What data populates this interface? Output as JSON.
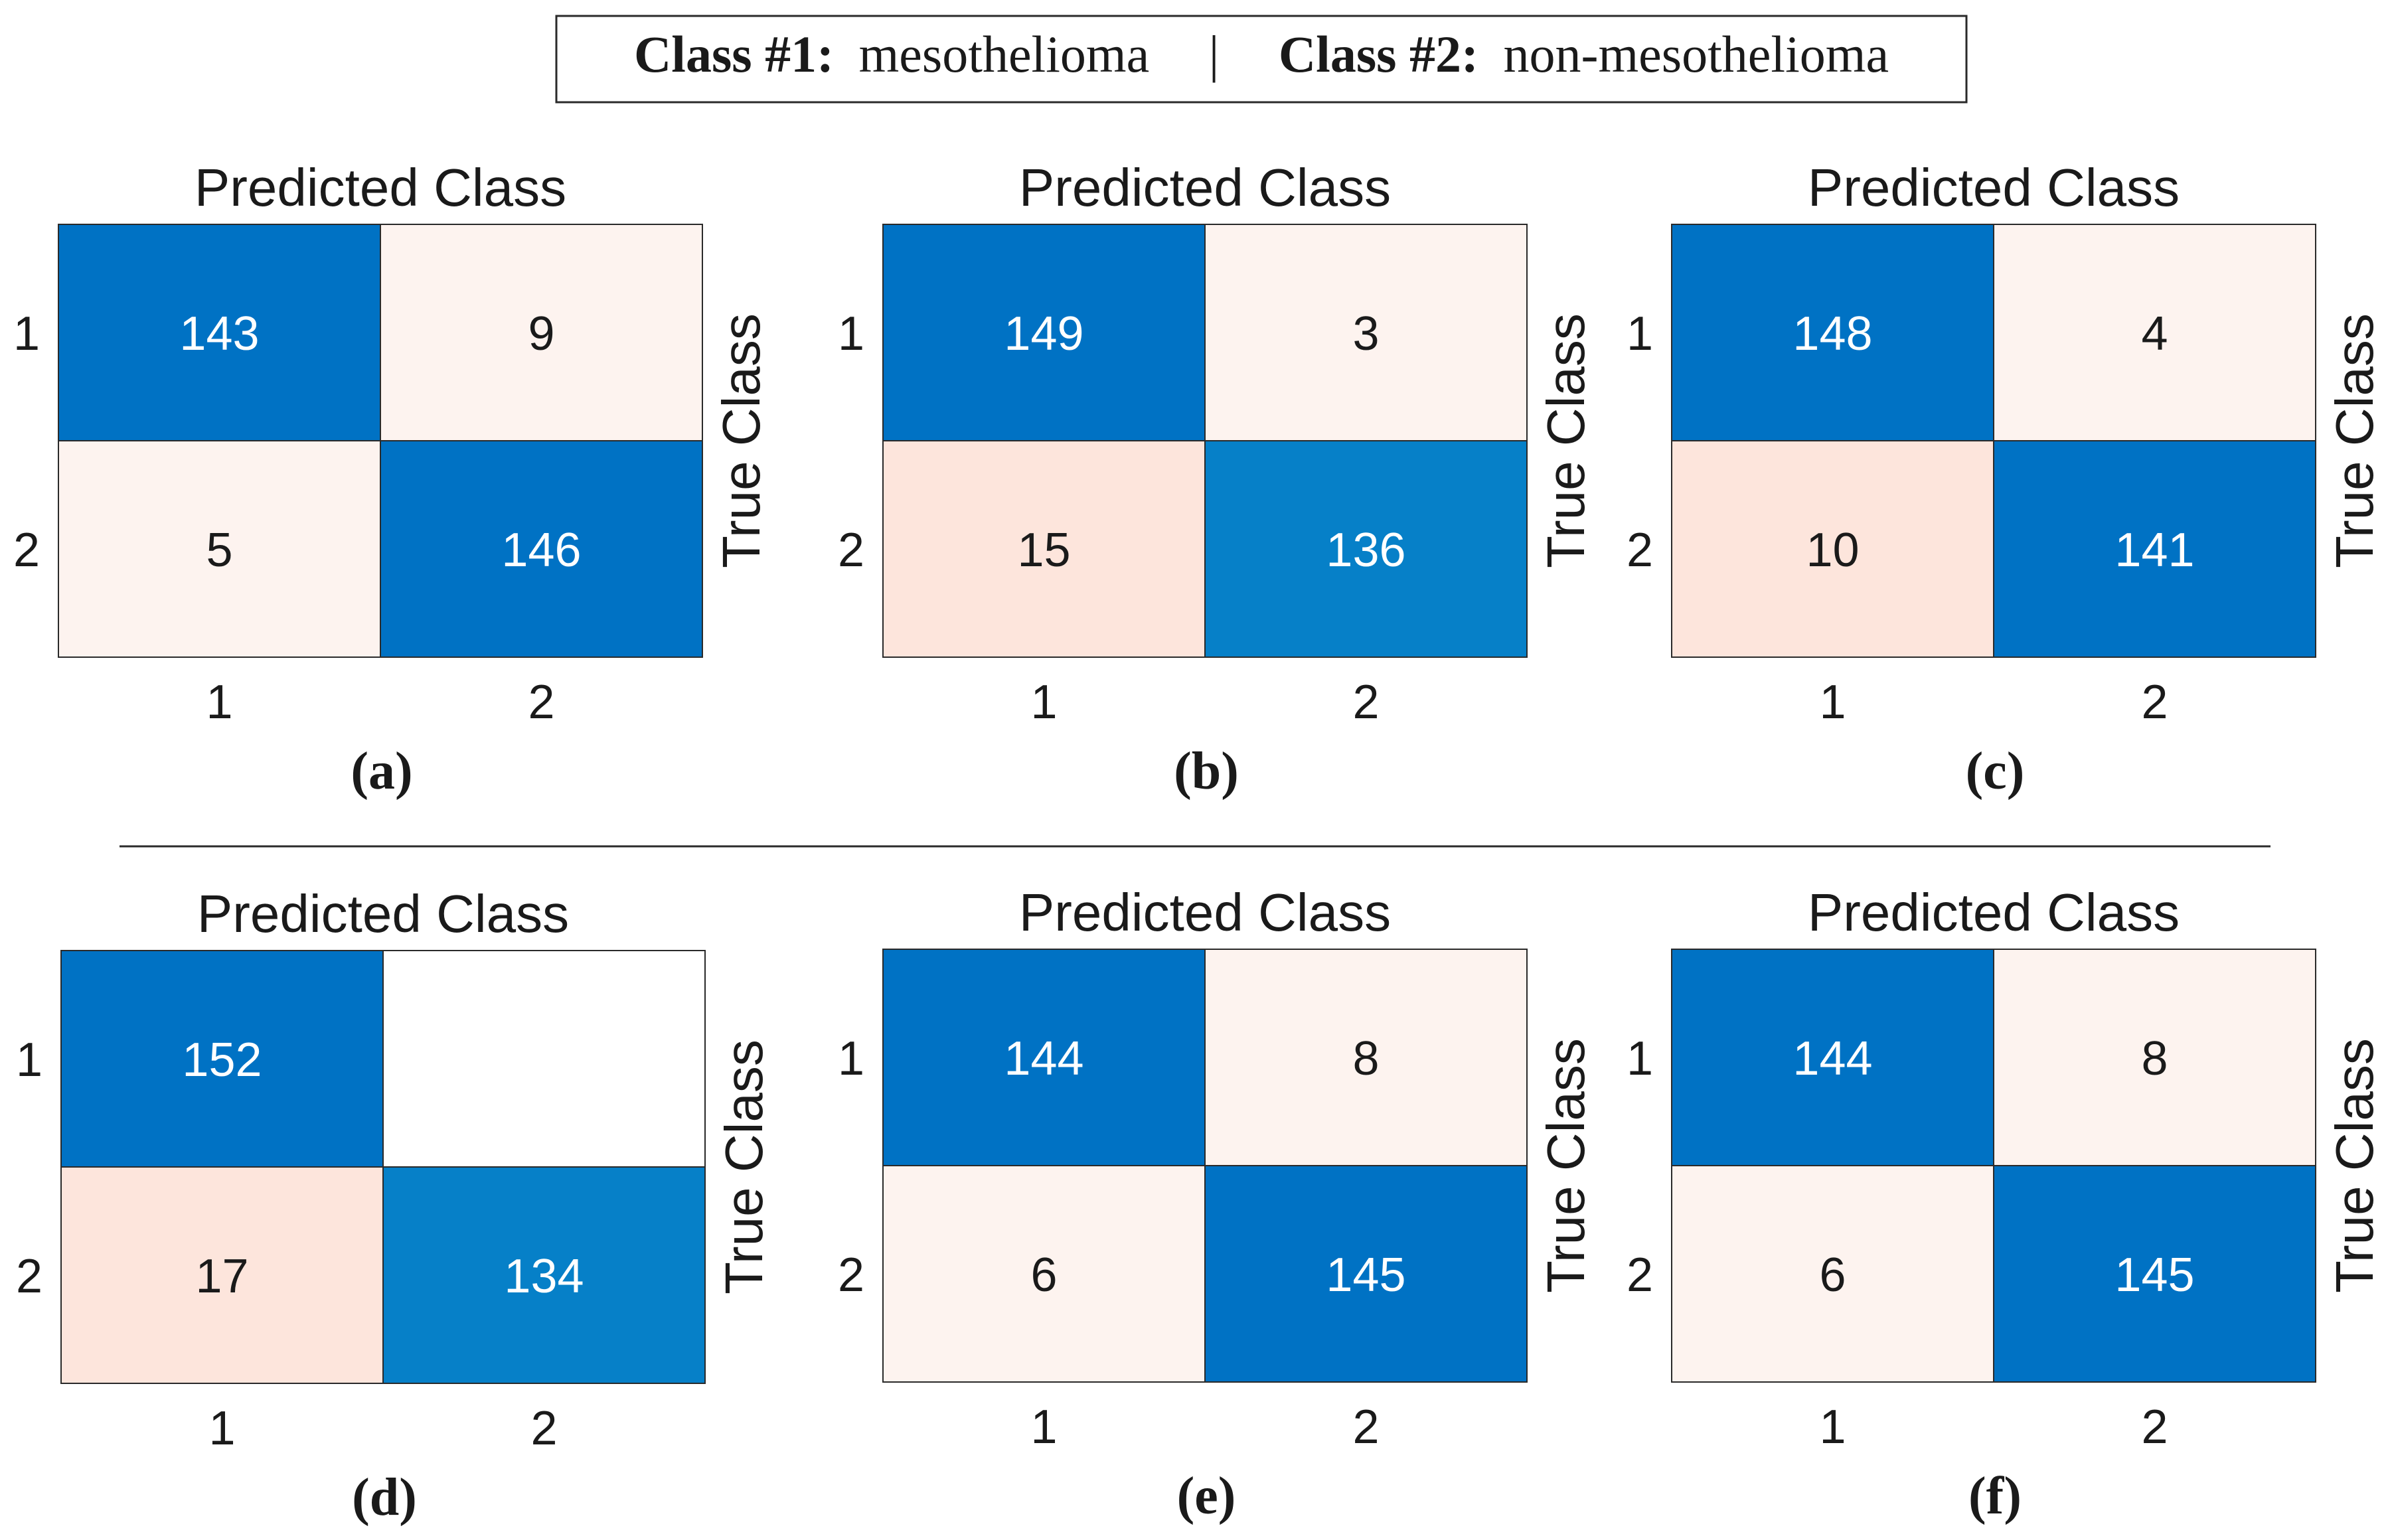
{
  "legend": {
    "class1_label": "Class #1:",
    "class1_name": "mesothelioma",
    "separator": "|",
    "class2_label": "Class #2:",
    "class2_name": "non-mesothelioma"
  },
  "colors": {
    "diag_high": "#0072c4",
    "diag_low": "#0680c8",
    "off_strong": "#fde5dc",
    "off_light": "#fdf3ef",
    "off_empty": "#ffffff",
    "border": "#2a2a2a",
    "text_dark": "#1a1a1a",
    "text_light": "#ffffff"
  },
  "chart_data": [
    {
      "type": "heatmap",
      "caption": "(a)",
      "title": "Predicted Class",
      "xlabel": "",
      "ylabel": "True Class",
      "x_ticks": [
        "1",
        "2"
      ],
      "y_ticks": [
        "1",
        "2"
      ],
      "matrix": [
        [
          143,
          9
        ],
        [
          5,
          146
        ]
      ]
    },
    {
      "type": "heatmap",
      "caption": "(b)",
      "title": "Predicted Class",
      "xlabel": "",
      "ylabel": "True Class",
      "x_ticks": [
        "1",
        "2"
      ],
      "y_ticks": [
        "1",
        "2"
      ],
      "matrix": [
        [
          149,
          3
        ],
        [
          15,
          136
        ]
      ]
    },
    {
      "type": "heatmap",
      "caption": "(c)",
      "title": "Predicted Class",
      "xlabel": "",
      "ylabel": "True Class",
      "x_ticks": [
        "1",
        "2"
      ],
      "y_ticks": [
        "1",
        "2"
      ],
      "matrix": [
        [
          148,
          4
        ],
        [
          10,
          141
        ]
      ]
    },
    {
      "type": "heatmap",
      "caption": "(d)",
      "title": "Predicted Class",
      "xlabel": "",
      "ylabel": "True Class",
      "x_ticks": [
        "1",
        "2"
      ],
      "y_ticks": [
        "1",
        "2"
      ],
      "matrix": [
        [
          152,
          null
        ],
        [
          17,
          134
        ]
      ]
    },
    {
      "type": "heatmap",
      "caption": "(e)",
      "title": "Predicted Class",
      "xlabel": "",
      "ylabel": "True Class",
      "x_ticks": [
        "1",
        "2"
      ],
      "y_ticks": [
        "1",
        "2"
      ],
      "matrix": [
        [
          144,
          8
        ],
        [
          6,
          145
        ]
      ]
    },
    {
      "type": "heatmap",
      "caption": "(f)",
      "title": "Predicted Class",
      "xlabel": "",
      "ylabel": "True Class",
      "x_ticks": [
        "1",
        "2"
      ],
      "y_ticks": [
        "1",
        "2"
      ],
      "matrix": [
        [
          144,
          8
        ],
        [
          6,
          145
        ]
      ]
    }
  ]
}
